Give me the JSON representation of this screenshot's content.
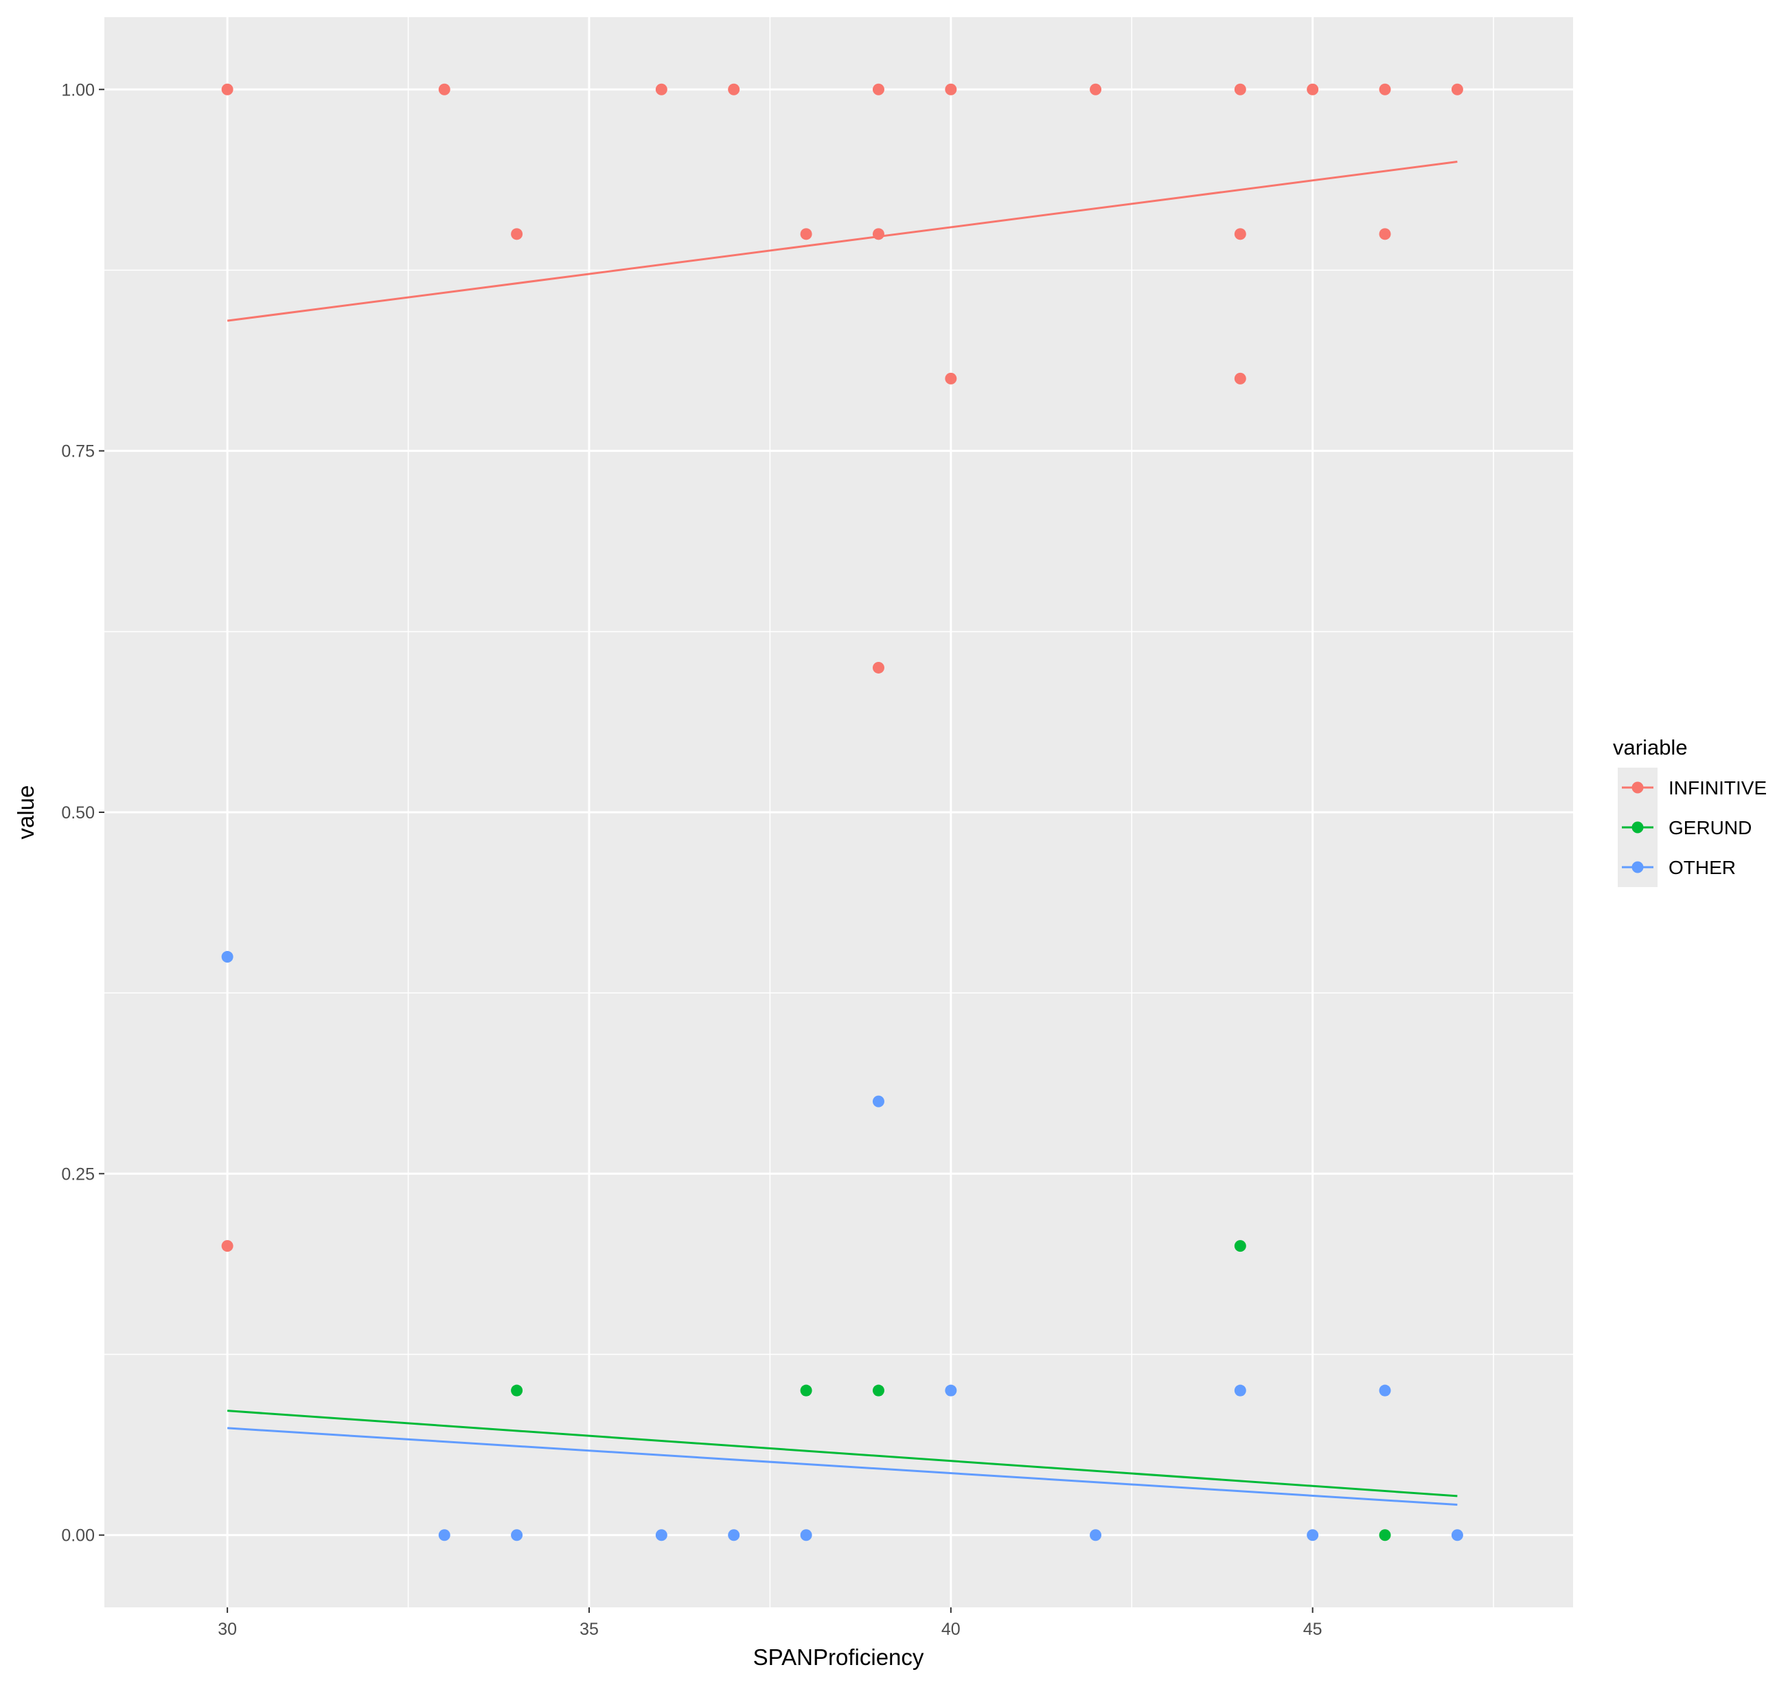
{
  "chart_data": {
    "type": "scatter",
    "xlabel": "SPANProficiency",
    "ylabel": "value",
    "xlim": [
      28.3,
      48.6
    ],
    "ylim": [
      -0.05,
      1.05
    ],
    "x_ticks": [
      30,
      35,
      40,
      45
    ],
    "y_ticks": [
      0.0,
      0.25,
      0.5,
      0.75,
      1.0
    ],
    "x_tick_labels": [
      "30",
      "35",
      "40",
      "45"
    ],
    "y_tick_labels": [
      "0.00",
      "0.25",
      "0.50",
      "0.75",
      "1.00"
    ],
    "grid": true,
    "panel_background": "#ebebeb",
    "legend": {
      "title": "variable",
      "position": "right"
    },
    "series": [
      {
        "name": "INFINITIVE",
        "color": "#f8766d",
        "points": [
          [
            30,
            1.0
          ],
          [
            33,
            1.0
          ],
          [
            36,
            1.0
          ],
          [
            37,
            1.0
          ],
          [
            39,
            1.0
          ],
          [
            40,
            1.0
          ],
          [
            42,
            1.0
          ],
          [
            44,
            1.0
          ],
          [
            45,
            1.0
          ],
          [
            46,
            1.0
          ],
          [
            47,
            1.0
          ],
          [
            34,
            0.9
          ],
          [
            38,
            0.9
          ],
          [
            39,
            0.9
          ],
          [
            44,
            0.9
          ],
          [
            46,
            0.9
          ],
          [
            40,
            0.8
          ],
          [
            44,
            0.8
          ],
          [
            39,
            0.6
          ],
          [
            30,
            0.2
          ]
        ],
        "trend": [
          [
            30,
            0.84
          ],
          [
            47,
            0.95
          ]
        ]
      },
      {
        "name": "GERUND",
        "color": "#00ba38",
        "points": [
          [
            34,
            0.1
          ],
          [
            38,
            0.1
          ],
          [
            39,
            0.1
          ],
          [
            44,
            0.2
          ],
          [
            46,
            0.0
          ]
        ],
        "trend": [
          [
            30,
            0.086
          ],
          [
            47,
            0.027
          ]
        ]
      },
      {
        "name": "OTHER",
        "color": "#619cff",
        "points": [
          [
            30,
            0.4
          ],
          [
            39,
            0.3
          ],
          [
            40,
            0.1
          ],
          [
            44,
            0.1
          ],
          [
            46,
            0.1
          ],
          [
            33,
            0.0
          ],
          [
            34,
            0.0
          ],
          [
            36,
            0.0
          ],
          [
            37,
            0.0
          ],
          [
            38,
            0.0
          ],
          [
            42,
            0.0
          ],
          [
            45,
            0.0
          ],
          [
            47,
            0.0
          ]
        ],
        "trend": [
          [
            30,
            0.074
          ],
          [
            47,
            0.021
          ]
        ]
      }
    ]
  }
}
